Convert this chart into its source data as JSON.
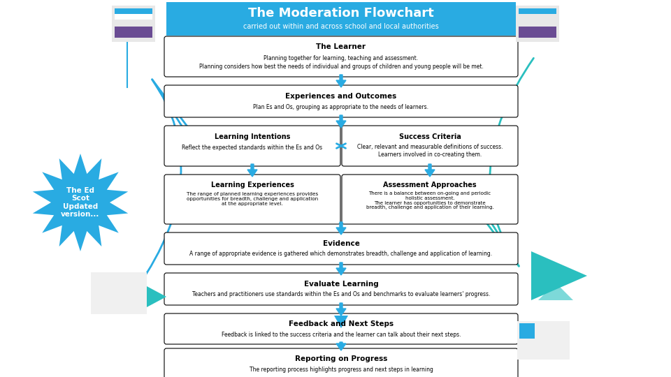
{
  "title": "The Moderation Flowchart",
  "subtitle": "carried out within and across school and local authorities",
  "title_bg": "#29ABE2",
  "box_border": "#000000",
  "box_bg": "#FFFFFF",
  "bg": "#FFFFFF",
  "arrow_color": "#29ABE2",
  "teal_color": "#2ABFBF",
  "star_color": "#29ABE2",
  "boxes": {
    "learner": {
      "title": "The Learner",
      "body1": "Planning together for learning, teaching and assessment.",
      "body2": "Planning considers how best the needs of individual and groups of children and young people will be met."
    },
    "eo": {
      "title": "Experiences and Outcomes",
      "body1": "Plan Es and Os, grouping as appropriate to the needs of learners."
    },
    "li": {
      "title": "Learning Intentions",
      "body1": "Reflect the expected standards within the Es and Os"
    },
    "sc": {
      "title": "Success Criteria",
      "body1": "Clear, relevant and measurable definitions of success.",
      "body2": "Learners involved in co-creating them."
    },
    "le": {
      "title": "Learning Experiences",
      "body1": "The range of planned learning experiences provides opportunities for breadth, challenge and application at the appropriate level."
    },
    "aa": {
      "title": "Assessment Approaches",
      "body1": "There is a balance between on-going and periodic holistic assessment.",
      "body2": "The learner has opportunities to demonstrate breadth, challenge and application of their learning."
    },
    "ev": {
      "title": "Evidence",
      "body1": "A range of appropriate evidence is gathered which demonstrates breadth, challenge and application of learning."
    },
    "el": {
      "title": "Evaluate Learning",
      "body1": "Teachers and practitioners use standards within the Es and Os and benchmarks to evaluate learners' progress."
    },
    "fn": {
      "title": "Feedback and Next Steps",
      "body1": "Feedback is linked to the success criteria and the learner can talk about their next steps."
    },
    "rp": {
      "title": "Reporting on Progress",
      "body1": "The reporting process highlights progress and next steps in learning"
    }
  }
}
